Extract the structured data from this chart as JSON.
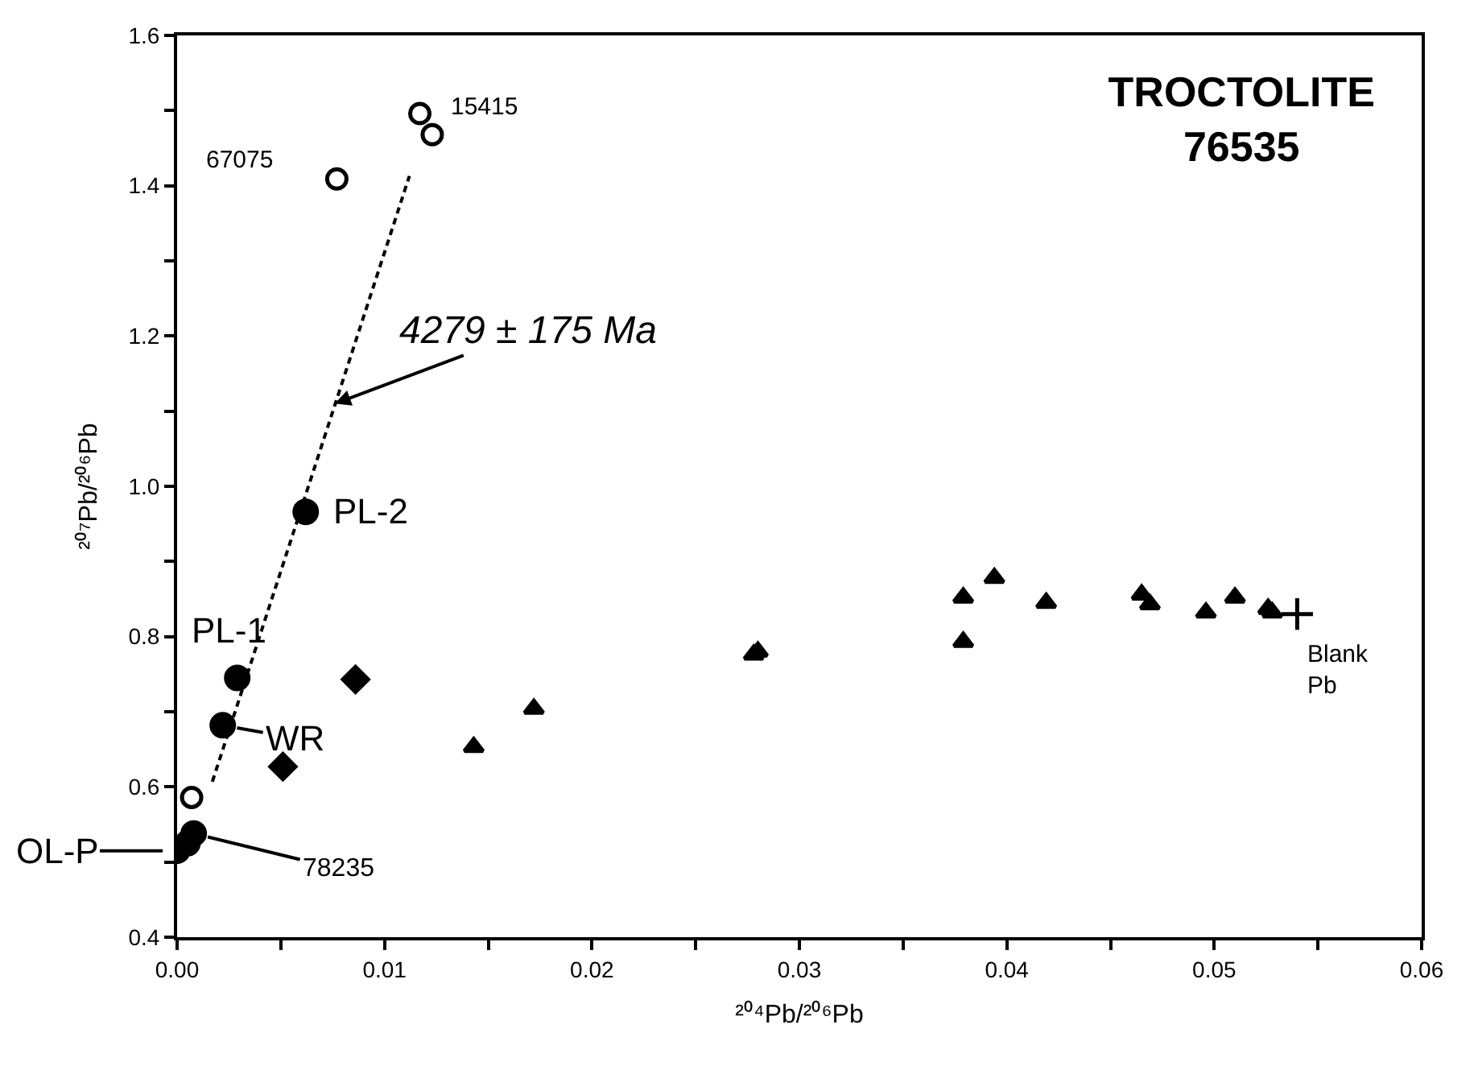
{
  "chart_data": {
    "type": "scatter",
    "title": "TROCTOLITE\n76535",
    "xlabel": "²⁰⁴Pb/²⁰⁶Pb",
    "ylabel": "²⁰⁷Pb/²⁰⁶Pb",
    "xlim": [
      0,
      0.06
    ],
    "ylim": [
      0.4,
      1.6
    ],
    "xticks": [
      {
        "value": 0,
        "label": "0.00"
      },
      {
        "value": 0.005,
        "label": null
      },
      {
        "value": 0.01,
        "label": "0.01"
      },
      {
        "value": 0.015,
        "label": null
      },
      {
        "value": 0.02,
        "label": "0.02"
      },
      {
        "value": 0.025,
        "label": null
      },
      {
        "value": 0.03,
        "label": "0.03"
      },
      {
        "value": 0.035,
        "label": null
      },
      {
        "value": 0.04,
        "label": "0.04"
      },
      {
        "value": 0.045,
        "label": null
      },
      {
        "value": 0.05,
        "label": "0.05"
      },
      {
        "value": 0.055,
        "label": null
      },
      {
        "value": 0.06,
        "label": "0.06"
      }
    ],
    "yticks": [
      0.4,
      {
        "value": 0.5,
        "label": null
      },
      0.6,
      {
        "value": 0.7,
        "label": null
      },
      0.8,
      {
        "value": 0.9,
        "label": null
      },
      {
        "value": 1.0,
        "label": "1.0"
      },
      {
        "value": 1.1,
        "label": null
      },
      1.2,
      {
        "value": 1.3,
        "label": null
      },
      1.4,
      {
        "value": 1.5,
        "label": null
      },
      1.6
    ],
    "series": [
      {
        "type": "line",
        "line_style": "dashed",
        "marker": "none",
        "color": "#000000",
        "x": [
          0.0017,
          0.0112
        ],
        "values": [
          0.607,
          1.413
        ]
      },
      {
        "marker": "circle-open",
        "color": "#000000",
        "x": [
          0.0117,
          0.0123,
          0.0077,
          0.0007
        ],
        "values": [
          1.496,
          1.468,
          1.409,
          0.586
        ]
      },
      {
        "marker": "circle",
        "color": "#000000",
        "x": [
          0.0062,
          0.0029,
          0.0022,
          0.0,
          0.0005,
          0.0008
        ],
        "values": [
          0.966,
          0.745,
          0.682,
          0.515,
          0.525,
          0.538
        ]
      },
      {
        "marker": "diamond",
        "color": "#000000",
        "x": [
          0.0086,
          0.0051
        ],
        "values": [
          0.743,
          0.627
        ]
      },
      {
        "marker": "triangle",
        "color": "#000000",
        "x": [
          0.0143,
          0.0172,
          0.0278,
          0.028,
          0.0379,
          0.0379,
          0.0394,
          0.0419,
          0.0465,
          0.0469,
          0.0496,
          0.051,
          0.0526,
          0.0528
        ],
        "values": [
          0.653,
          0.704,
          0.776,
          0.78,
          0.852,
          0.793,
          0.878,
          0.845,
          0.856,
          0.843,
          0.832,
          0.852,
          0.837,
          0.832
        ]
      },
      {
        "marker": "cross",
        "color": "#000000",
        "x": [
          0.054
        ],
        "values": [
          0.83
        ]
      }
    ],
    "annotations": [
      {
        "text": "67075",
        "x": 0.0077,
        "y": 1.409
      },
      {
        "text": "15415",
        "x": 0.0117,
        "y": 1.496
      },
      {
        "text": "4279 ± 175 Ma",
        "x": 0.0076,
        "y": 1.11
      },
      {
        "text": "PL-2",
        "x": 0.0062,
        "y": 0.966
      },
      {
        "text": "PL-1",
        "x": 0.0029,
        "y": 0.745
      },
      {
        "text": "WR",
        "x": 0.0022,
        "y": 0.682
      },
      {
        "text": "78235",
        "x": 0.0008,
        "y": 0.538
      },
      {
        "text": "OL-P",
        "x": 0.0,
        "y": 0.515
      },
      {
        "text": "Blank\nPb",
        "x": 0.054,
        "y": 0.83
      }
    ]
  }
}
